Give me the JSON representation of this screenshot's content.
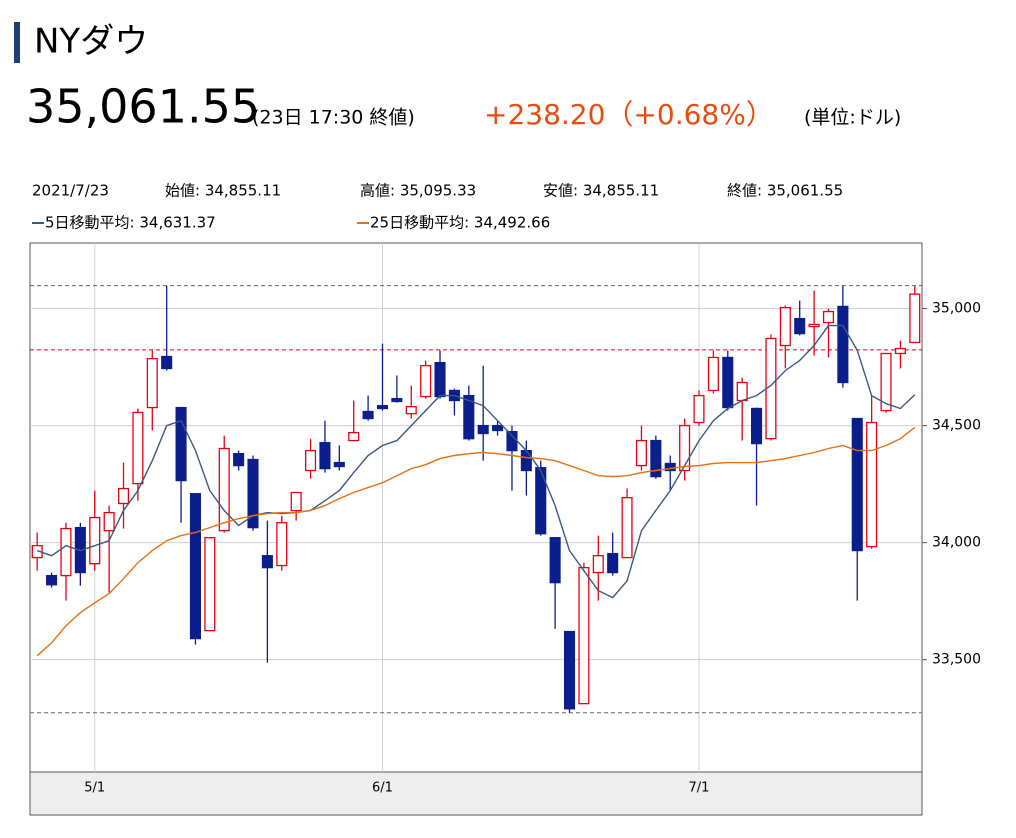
{
  "header": {
    "title": "NYダウ",
    "price": "35,061.55",
    "time": "(23日 17:30 終値)",
    "change": "+238.20（+0.68%）",
    "unit": "(単位:ドル)",
    "info": {
      "date": "2021/7/23",
      "open": "始値: 34,855.11",
      "high": "高値: 35,095.33",
      "low": "安値: 34,855.11",
      "close": "終値: 35,061.55"
    }
  },
  "chart_data": {
    "type": "candlestick",
    "categories": [
      null,
      null,
      null,
      null,
      "5/1",
      null,
      null,
      null,
      null,
      null,
      null,
      null,
      null,
      null,
      null,
      null,
      null,
      null,
      null,
      null,
      null,
      null,
      null,
      null,
      "6/1",
      null,
      null,
      null,
      null,
      null,
      null,
      null,
      null,
      null,
      null,
      null,
      null,
      null,
      null,
      null,
      null,
      null,
      null,
      null,
      null,
      null,
      "7/1",
      null,
      null,
      null,
      null,
      null,
      null,
      null,
      null,
      null,
      null,
      null,
      null,
      null,
      null,
      null
    ],
    "open": [
      33936,
      33859,
      33859,
      34064,
      33910,
      34051,
      34167,
      34252,
      34577,
      34795,
      34577,
      34209,
      33624,
      34051,
      34380,
      34355,
      33944,
      33902,
      34137,
      34308,
      34427,
      34342,
      34436,
      34560,
      34585,
      34615,
      34551,
      34624,
      34769,
      34650,
      34628,
      34500,
      34500,
      34474,
      34393,
      34320,
      34021,
      33620,
      33312,
      33872,
      33953,
      33936,
      34329,
      34436,
      34338,
      34308,
      34513,
      34650,
      34791,
      34607,
      34573,
      34444,
      34842,
      34957,
      34923,
      34940,
      35009,
      34530,
      33983,
      34564,
      34808,
      34855.11
    ],
    "high": [
      34043,
      33872,
      34085,
      34085,
      34222,
      34158,
      34342,
      34573,
      34821,
      35098,
      34577,
      34209,
      34021,
      34457,
      34393,
      34372,
      34094,
      34115,
      34214,
      34444,
      34521,
      34415,
      34607,
      34628,
      34850,
      34714,
      34671,
      34778,
      34821,
      34658,
      34671,
      34756,
      34521,
      34500,
      34436,
      34350,
      34021,
      33620,
      33914,
      34030,
      34043,
      34231,
      34500,
      34457,
      34372,
      34530,
      34650,
      34821,
      34821,
      34705,
      34577,
      34889,
      35013,
      35034,
      35077,
      35000,
      35098,
      34530,
      34628,
      34808,
      34863,
      35095.33
    ],
    "low": [
      33880,
      33808,
      33752,
      33816,
      33880,
      33786,
      34060,
      34179,
      34479,
      34735,
      34085,
      33564,
      33624,
      34043,
      34308,
      34051,
      33487,
      33880,
      34094,
      34273,
      34299,
      34308,
      34436,
      34521,
      34564,
      34598,
      34530,
      34615,
      34615,
      34543,
      34436,
      34350,
      34457,
      34222,
      34201,
      34030,
      33632,
      33273,
      33312,
      33752,
      33859,
      33936,
      34308,
      34273,
      34222,
      34265,
      34500,
      34637,
      34564,
      34436,
      34158,
      34436,
      34744,
      34885,
      34799,
      34791,
      34662,
      33752,
      33974,
      34555,
      34744,
      34855.11
    ],
    "close": [
      33987,
      33820,
      34060,
      33872,
      34107,
      34128,
      34231,
      34556,
      34786,
      34744,
      34265,
      33590,
      34021,
      34402,
      34329,
      34064,
      33893,
      34085,
      34214,
      34393,
      34316,
      34325,
      34470,
      34530,
      34573,
      34603,
      34581,
      34756,
      34624,
      34607,
      34444,
      34466,
      34479,
      34393,
      34308,
      34038,
      33829,
      33290,
      33893,
      33944,
      33872,
      34192,
      34436,
      34282,
      34308,
      34500,
      34628,
      34791,
      34577,
      34684,
      34423,
      34872,
      35004,
      34893,
      34932,
      34987,
      34684,
      33966,
      34513,
      34808,
      34829,
      35061.55
    ],
    "up_color": "#e60012",
    "down_color": "#0b1e8c",
    "series": [
      {
        "name": "5日移動平均",
        "legend_label": "5日移動平均: 34,631.37",
        "color": "#3b5a80",
        "values": [
          33966,
          33944,
          33987,
          33966,
          33987,
          34008,
          34137,
          34222,
          34350,
          34500,
          34521,
          34393,
          34222,
          34137,
          34073,
          34115,
          34128,
          34124,
          34128,
          34137,
          34179,
          34222,
          34299,
          34372,
          34415,
          34436,
          34500,
          34564,
          34628,
          34628,
          34607,
          34585,
          34521,
          34457,
          34393,
          34308,
          34158,
          33966,
          33880,
          33795,
          33765,
          33837,
          34051,
          34137,
          34222,
          34329,
          34436,
          34521,
          34573,
          34607,
          34628,
          34671,
          34735,
          34778,
          34842,
          34927,
          34927,
          34821,
          34628,
          34594,
          34573,
          34631.37
        ]
      },
      {
        "name": "25日移動平均",
        "legend_label": "25日移動平均: 34,492.66",
        "color": "#e8700e",
        "values": [
          33517,
          33572,
          33645,
          33701,
          33743,
          33782,
          33846,
          33914,
          33966,
          34008,
          34030,
          34043,
          34064,
          34085,
          34102,
          34115,
          34124,
          34128,
          34128,
          34137,
          34158,
          34188,
          34214,
          34235,
          34256,
          34286,
          34316,
          34333,
          34359,
          34372,
          34380,
          34385,
          34380,
          34372,
          34363,
          34359,
          34350,
          34329,
          34308,
          34286,
          34282,
          34286,
          34299,
          34308,
          34316,
          34325,
          34329,
          34338,
          34342,
          34342,
          34342,
          34350,
          34359,
          34372,
          34385,
          34402,
          34415,
          34393,
          34393,
          34415,
          34444,
          34492.66
        ]
      }
    ],
    "ylim": [
      33020,
      35280
    ],
    "yticks": [
      {
        "value": 33500,
        "label": "33,500"
      },
      {
        "value": 34000,
        "label": "34,000"
      },
      {
        "value": 34500,
        "label": "34,500"
      },
      {
        "value": 35000,
        "label": "35,000"
      }
    ],
    "grid": true,
    "high_line": 35098,
    "low_line": 33273,
    "prev_close_line": 34823.35
  }
}
